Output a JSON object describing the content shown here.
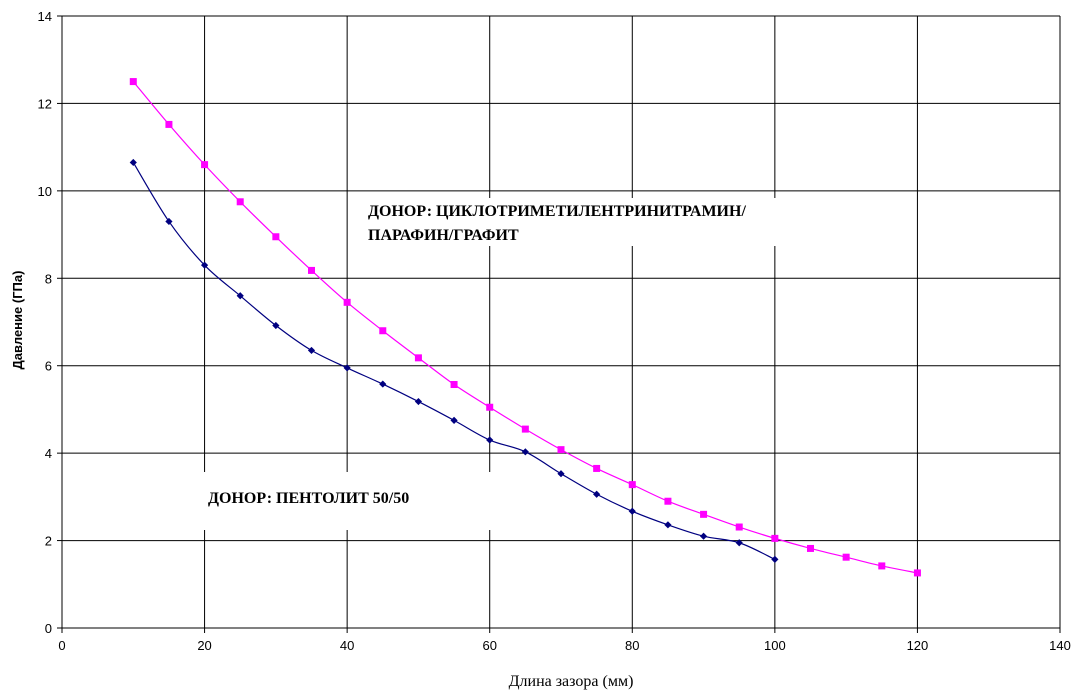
{
  "chart_data": {
    "type": "line",
    "xlabel": "Длина зазора (мм)",
    "ylabel": "Давление (ГПа)",
    "xlim": [
      0,
      140
    ],
    "ylim": [
      0,
      14
    ],
    "xticks": [
      0,
      20,
      40,
      60,
      80,
      100,
      120,
      140
    ],
    "yticks": [
      0,
      2,
      4,
      6,
      8,
      10,
      12,
      14
    ],
    "grid": true,
    "annotations": [
      {
        "line1": "ДОНОР:  ЦИКЛОТРИМЕТИЛЕНТРИНИТРАМИН/",
        "line2": "ПАРАФИН/ГРАФИТ"
      },
      {
        "line1": "ДОНОР:  ПЕНТОЛИТ 50/50"
      }
    ],
    "series": [
      {
        "color": "#000080",
        "marker": "diamond",
        "x": [
          10,
          15,
          20,
          25,
          30,
          35,
          40,
          45,
          50,
          55,
          60,
          65,
          70,
          75,
          80,
          85,
          90,
          95,
          100
        ],
        "y": [
          10.65,
          9.3,
          8.3,
          7.6,
          6.92,
          6.35,
          5.95,
          5.58,
          5.18,
          4.75,
          4.3,
          4.03,
          3.53,
          3.06,
          2.67,
          2.36,
          2.1,
          1.95,
          1.57
        ]
      },
      {
        "color": "#ff00ff",
        "marker": "square",
        "x": [
          10,
          15,
          20,
          25,
          30,
          35,
          40,
          45,
          50,
          55,
          60,
          65,
          70,
          75,
          80,
          85,
          90,
          95,
          100,
          105,
          110,
          115,
          120
        ],
        "y": [
          12.5,
          11.52,
          10.6,
          9.75,
          8.95,
          8.18,
          7.45,
          6.8,
          6.18,
          5.57,
          5.05,
          4.55,
          4.08,
          3.65,
          3.28,
          2.9,
          2.6,
          2.31,
          2.05,
          1.82,
          1.62,
          1.42,
          1.26
        ]
      }
    ]
  }
}
